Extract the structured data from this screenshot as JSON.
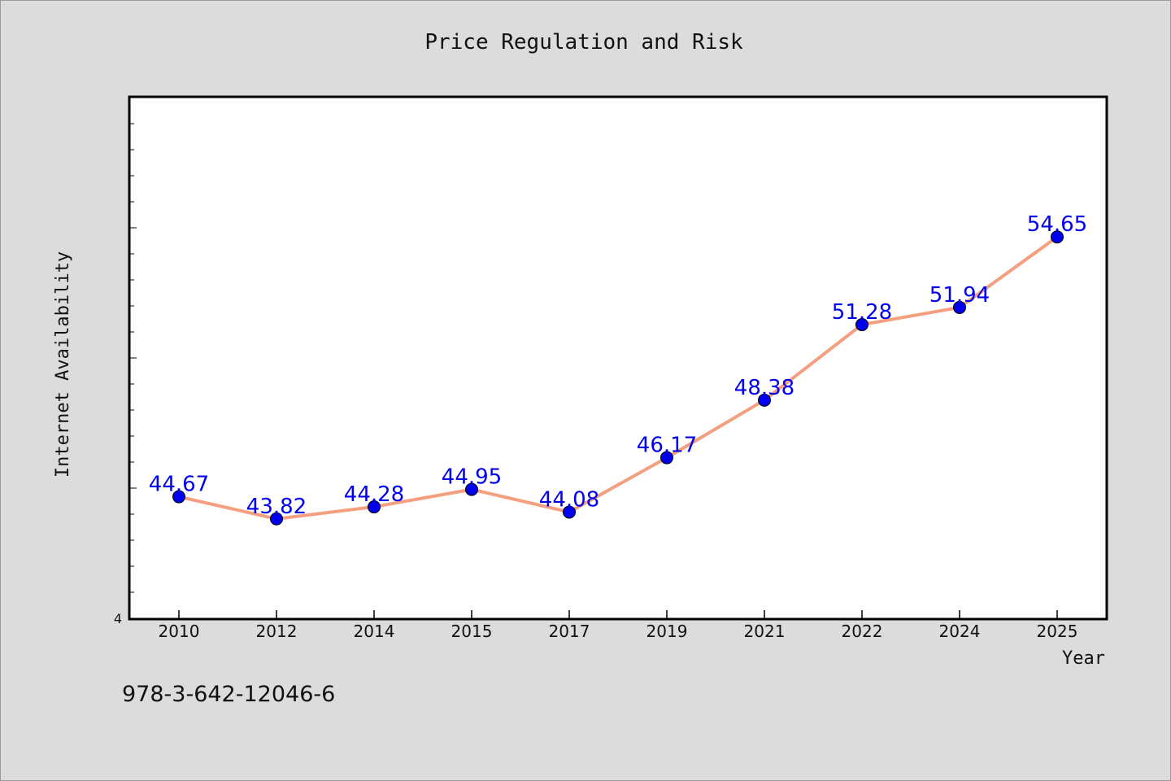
{
  "chart_data": {
    "type": "line",
    "title": "Price Regulation and Risk",
    "xlabel": "Year",
    "ylabel": "Internet Availability",
    "categories": [
      "2010",
      "2012",
      "2014",
      "2015",
      "2017",
      "2019",
      "2021",
      "2022",
      "2024",
      "2025"
    ],
    "values": [
      44.67,
      43.82,
      44.28,
      44.95,
      44.08,
      46.17,
      48.38,
      51.28,
      51.94,
      54.65
    ],
    "data_labels": [
      "44.67",
      "43.82",
      "44.28",
      "44.95",
      "44.08",
      "46.17",
      "48.38",
      "51.28",
      "51.94",
      "54.65"
    ],
    "ylim": [
      40,
      60
    ],
    "y_tick_labels": [
      "4"
    ],
    "grid": false,
    "line_color": "#f4a080",
    "marker_color": "#0000ee",
    "label_color": "#0000ee"
  },
  "footer_text": "978-3-642-12046-6"
}
